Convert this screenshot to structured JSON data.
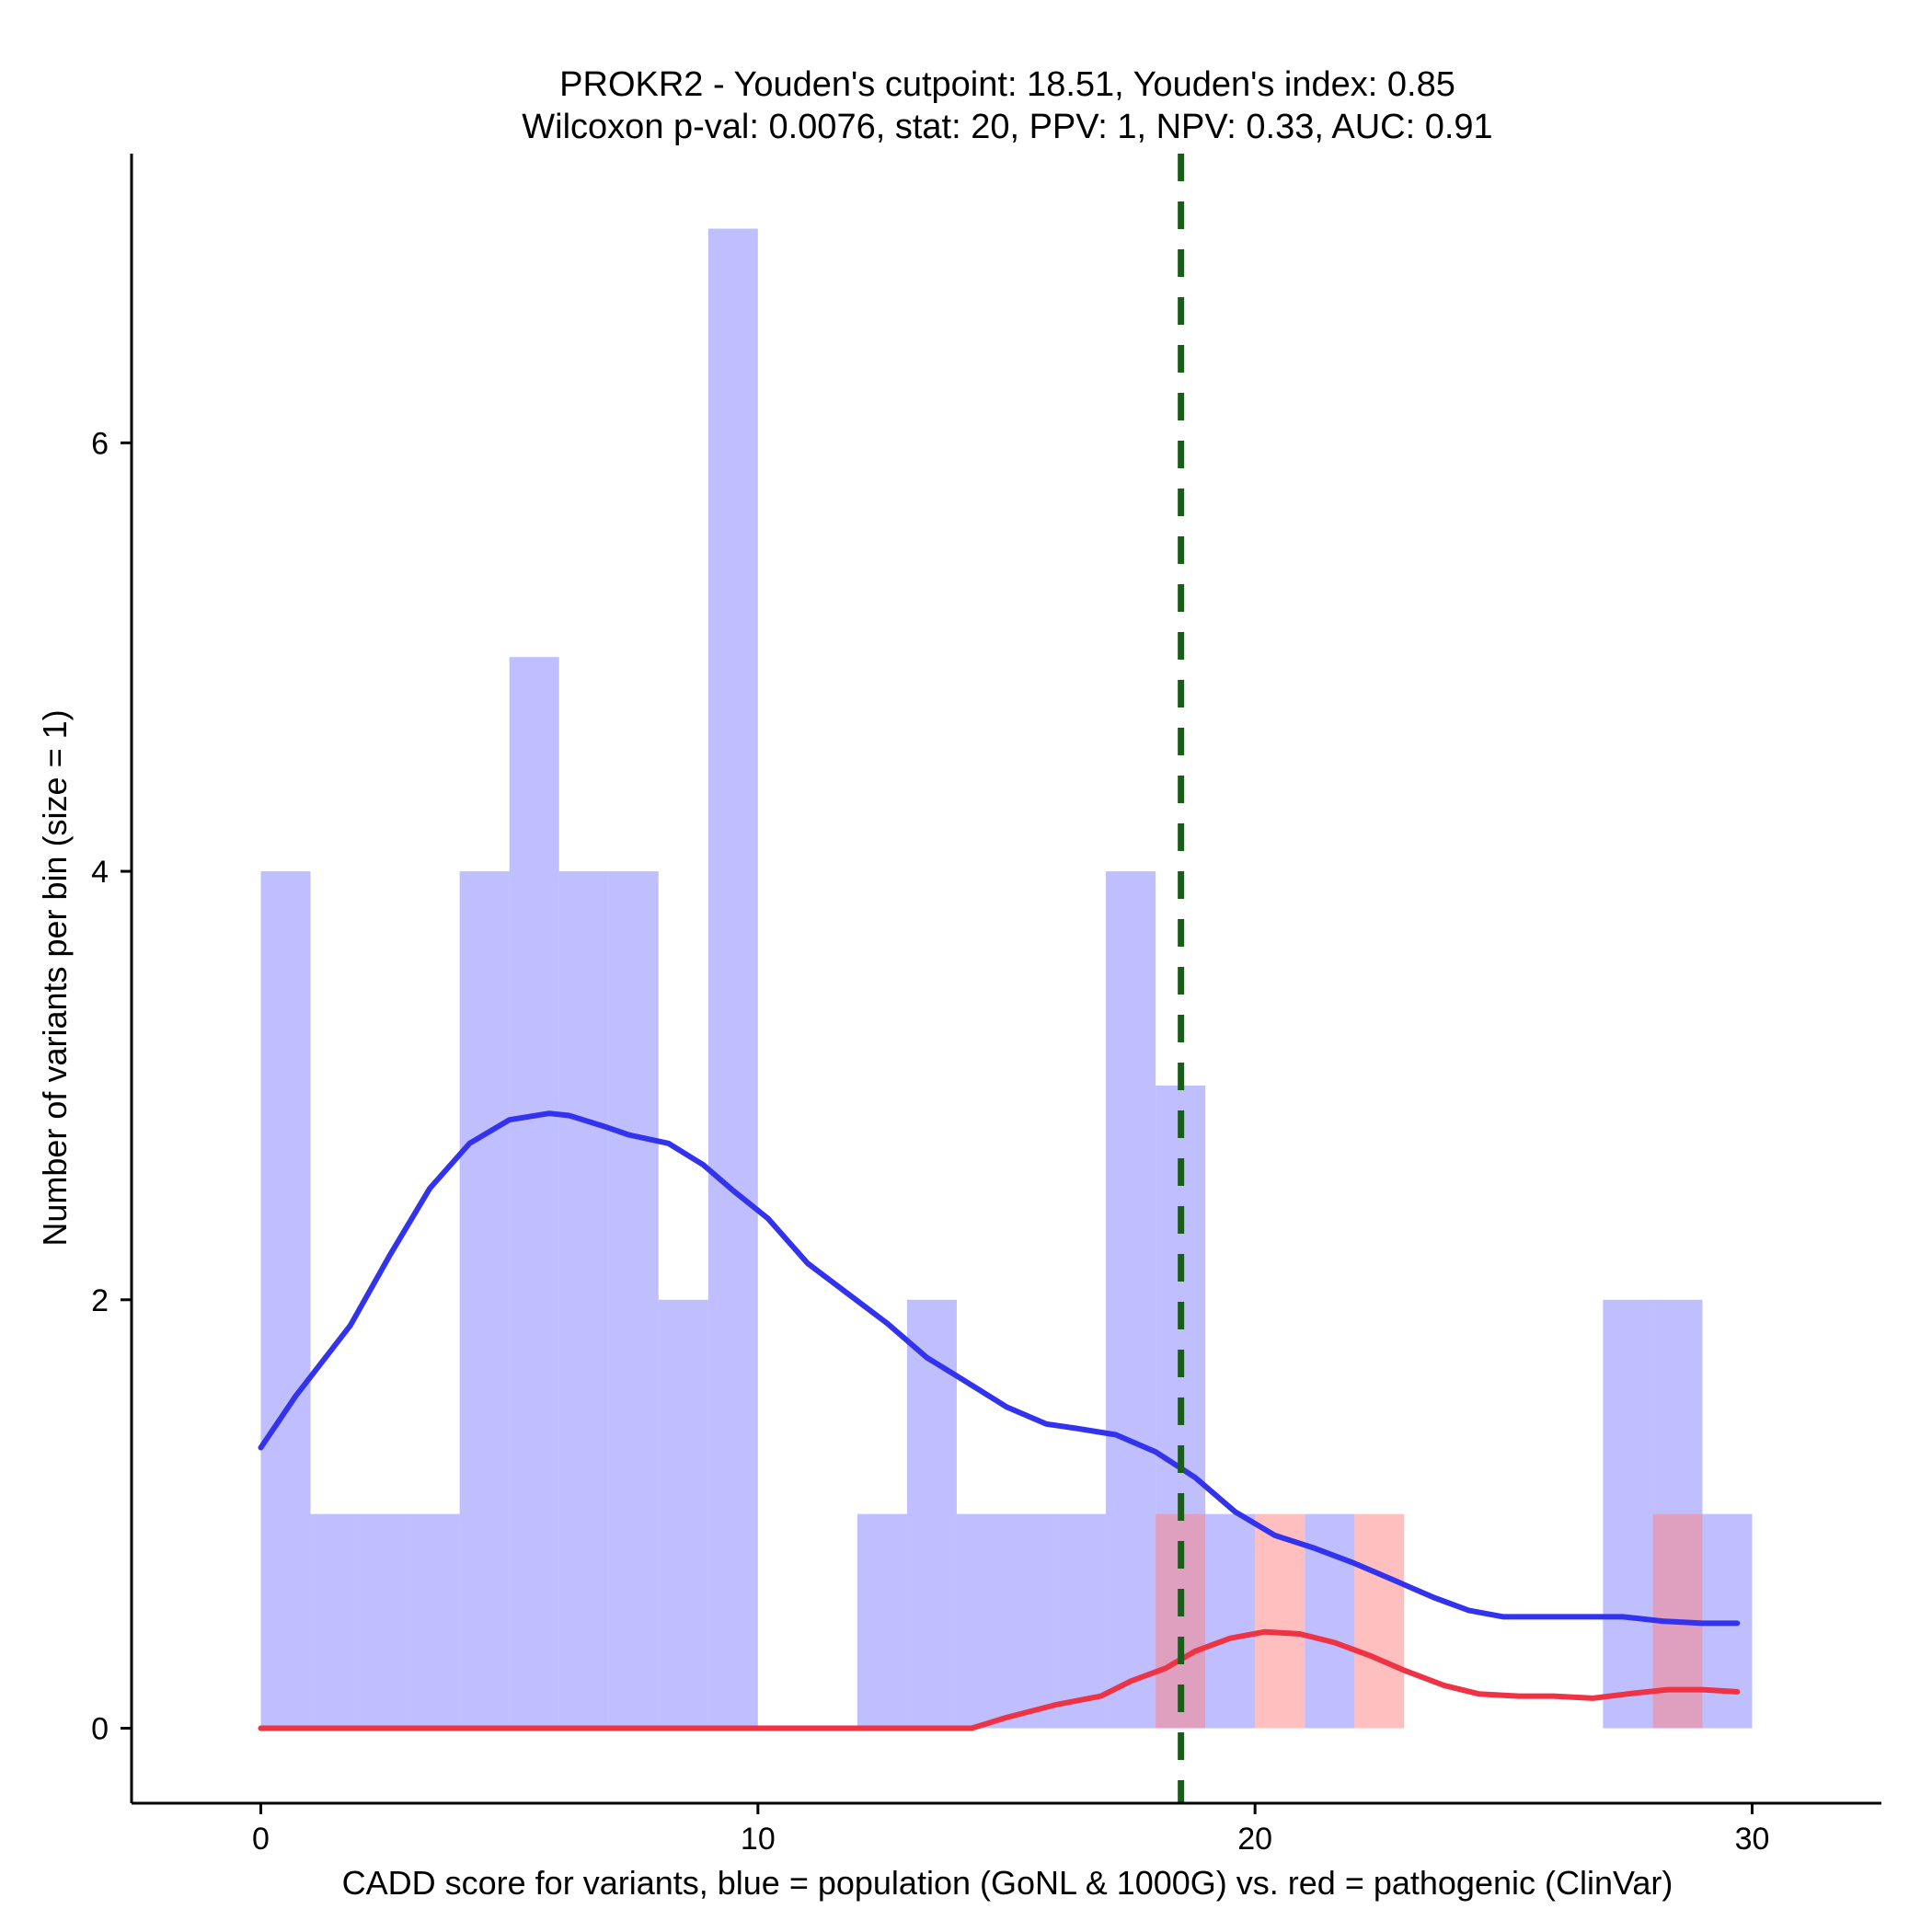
{
  "chart_data": {
    "type": "histogram",
    "title_line1": "PROKR2 - Youden's cutpoint: 18.51, Youden's index: 0.85",
    "title_line2": "Wilcoxon p-val: 0.0076, stat: 20, PPV: 1, NPV: 0.33, AUC: 0.91",
    "xlabel": "CADD score for variants, blue = population (GoNL & 1000G) vs. red = pathogenic (ClinVar)",
    "ylabel": "Number of variants per bin (size = 1)",
    "xlim": [
      -2.6,
      32.6
    ],
    "ylim": [
      -0.35,
      7.35
    ],
    "xticks": [
      0,
      10,
      20,
      30
    ],
    "xtick_labels": [
      "0",
      "10",
      "20",
      "30"
    ],
    "yticks": [
      0,
      2,
      4,
      6
    ],
    "ytick_labels": [
      "0",
      "2",
      "4",
      "6"
    ],
    "bin_width": 1,
    "series": [
      {
        "name": "population (GoNL & 1000G)",
        "color": "#8080ff",
        "opacity": 0.5,
        "bins": [
          {
            "x0": 0,
            "count": 4
          },
          {
            "x0": 1,
            "count": 1
          },
          {
            "x0": 2,
            "count": 1
          },
          {
            "x0": 3,
            "count": 1
          },
          {
            "x0": 4,
            "count": 4
          },
          {
            "x0": 5,
            "count": 5
          },
          {
            "x0": 6,
            "count": 4
          },
          {
            "x0": 7,
            "count": 4
          },
          {
            "x0": 8,
            "count": 2
          },
          {
            "x0": 9,
            "count": 7
          },
          {
            "x0": 12,
            "count": 1
          },
          {
            "x0": 13,
            "count": 2
          },
          {
            "x0": 14,
            "count": 1
          },
          {
            "x0": 15,
            "count": 1
          },
          {
            "x0": 16,
            "count": 1
          },
          {
            "x0": 17,
            "count": 4
          },
          {
            "x0": 18,
            "count": 3
          },
          {
            "x0": 19,
            "count": 1
          },
          {
            "x0": 21,
            "count": 1
          },
          {
            "x0": 27,
            "count": 2
          },
          {
            "x0": 28,
            "count": 2
          },
          {
            "x0": 29,
            "count": 1
          }
        ]
      },
      {
        "name": "pathogenic (ClinVar)",
        "color": "#ff8080",
        "opacity": 0.5,
        "bins": [
          {
            "x0": 18,
            "count": 1
          },
          {
            "x0": 20,
            "count": 1
          },
          {
            "x0": 22,
            "count": 1
          },
          {
            "x0": 28,
            "count": 1
          }
        ]
      }
    ],
    "density_curves": [
      {
        "name": "population density (scaled)",
        "color": "#3333ee",
        "x": [
          0,
          0.7,
          1.8,
          2.6,
          3.4,
          4.2,
          5.0,
          5.8,
          6.2,
          6.9,
          7.4,
          8.2,
          8.9,
          9.5,
          10.2,
          11.0,
          11.8,
          12.6,
          13.4,
          14.1,
          15.0,
          15.8,
          16.4,
          17.2,
          18.0,
          18.8,
          19.6,
          20.4,
          21.2,
          22.0,
          22.8,
          23.6,
          24.3,
          25.0,
          25.8,
          26.6,
          27.4,
          28.2,
          29.0,
          29.7
        ],
        "y": [
          1.31,
          1.55,
          1.88,
          2.21,
          2.52,
          2.73,
          2.84,
          2.87,
          2.86,
          2.81,
          2.77,
          2.73,
          2.63,
          2.51,
          2.38,
          2.17,
          2.03,
          1.89,
          1.73,
          1.63,
          1.5,
          1.42,
          1.4,
          1.37,
          1.29,
          1.17,
          1.01,
          0.9,
          0.84,
          0.77,
          0.69,
          0.61,
          0.55,
          0.52,
          0.52,
          0.52,
          0.52,
          0.5,
          0.49,
          0.49
        ]
      },
      {
        "name": "pathogenic density (scaled)",
        "color": "#ee3344",
        "x": [
          0,
          2,
          4,
          6,
          8,
          10,
          12,
          14.3,
          15.0,
          16.0,
          16.9,
          17.5,
          18.2,
          18.8,
          19.5,
          20.2,
          20.9,
          21.6,
          22.3,
          23.0,
          23.8,
          24.5,
          25.3,
          26.0,
          26.8,
          27.5,
          28.3,
          29.0,
          29.7
        ],
        "y": [
          0,
          0,
          0,
          0,
          0,
          0,
          0,
          0,
          0.05,
          0.11,
          0.15,
          0.22,
          0.28,
          0.36,
          0.42,
          0.45,
          0.44,
          0.4,
          0.34,
          0.27,
          0.2,
          0.16,
          0.15,
          0.15,
          0.14,
          0.16,
          0.18,
          0.18,
          0.17
        ]
      }
    ],
    "cutpoint": {
      "x": 18.51,
      "color": "#1a5c1a",
      "style": "dashed"
    }
  }
}
